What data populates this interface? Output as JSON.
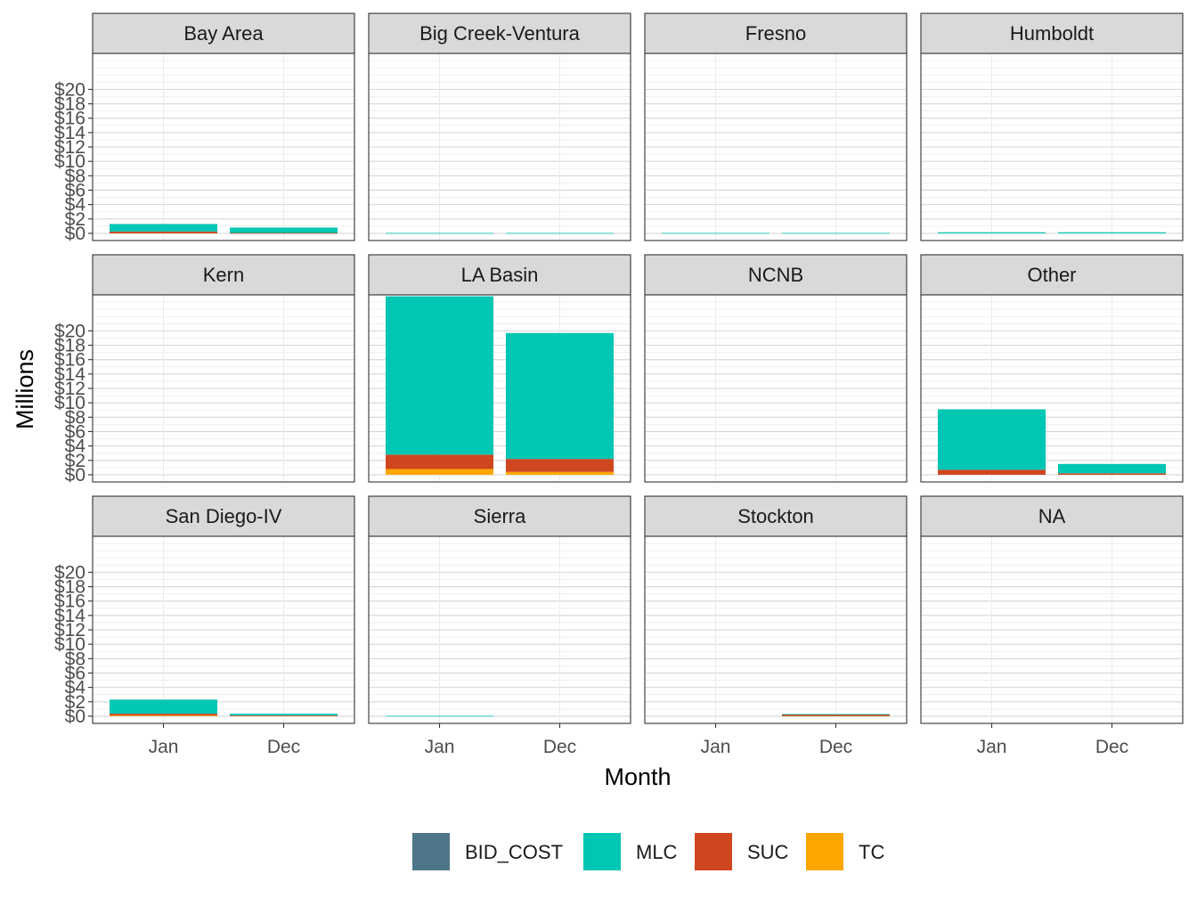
{
  "chart_data": {
    "type": "bar",
    "stacked": true,
    "facet_layout": {
      "rows": 3,
      "cols": 4,
      "scales": "fixed"
    },
    "xlabel": "Month",
    "ylabel": "Millions",
    "categories": [
      "Jan",
      "Dec"
    ],
    "y_ticks": [
      0,
      2,
      4,
      6,
      8,
      10,
      12,
      14,
      16,
      18,
      20
    ],
    "y_tick_labels": [
      "$0",
      "$2",
      "$4",
      "$6",
      "$8",
      "$10",
      "$12",
      "$14",
      "$16",
      "$18",
      "$20"
    ],
    "ylim": [
      -1,
      25
    ],
    "grid": true,
    "legend_position": "bottom",
    "legend": [
      {
        "name": "BID_COST",
        "color": "#4E7689"
      },
      {
        "name": "MLC",
        "color": "#00C6B4"
      },
      {
        "name": "SUC",
        "color": "#D0461E"
      },
      {
        "name": "TC",
        "color": "#FFA500"
      }
    ],
    "stack_order": [
      "TC",
      "SUC",
      "MLC",
      "BID_COST"
    ],
    "panels": [
      {
        "title": "Bay Area",
        "values": {
          "Jan": {
            "TC": 0,
            "SUC": 0.25,
            "MLC": 1.05,
            "BID_COST": 0
          },
          "Dec": {
            "TC": 0,
            "SUC": 0.05,
            "MLC": 0.75,
            "BID_COST": 0
          }
        }
      },
      {
        "title": "Big Creek-Ventura",
        "values": {
          "Jan": {
            "TC": 0,
            "SUC": 0,
            "MLC": 0.05,
            "BID_COST": 0
          },
          "Dec": {
            "TC": 0,
            "SUC": 0,
            "MLC": 0.05,
            "BID_COST": 0
          }
        }
      },
      {
        "title": "Fresno",
        "values": {
          "Jan": {
            "TC": 0,
            "SUC": 0,
            "MLC": 0.05,
            "BID_COST": 0
          },
          "Dec": {
            "TC": 0,
            "SUC": 0,
            "MLC": 0.05,
            "BID_COST": 0
          }
        }
      },
      {
        "title": "Humboldt",
        "values": {
          "Jan": {
            "TC": 0,
            "SUC": 0,
            "MLC": 0.15,
            "BID_COST": 0
          },
          "Dec": {
            "TC": 0,
            "SUC": 0,
            "MLC": 0.15,
            "BID_COST": 0
          }
        }
      },
      {
        "title": "Kern",
        "values": {
          "Jan": {
            "TC": 0,
            "SUC": 0,
            "MLC": 0,
            "BID_COST": 0
          },
          "Dec": {
            "TC": 0,
            "SUC": 0,
            "MLC": 0,
            "BID_COST": 0
          }
        }
      },
      {
        "title": "LA Basin",
        "values": {
          "Jan": {
            "TC": 0.8,
            "SUC": 2.0,
            "MLC": 22.0,
            "BID_COST": 0
          },
          "Dec": {
            "TC": 0.4,
            "SUC": 1.8,
            "MLC": 17.5,
            "BID_COST": 0
          }
        }
      },
      {
        "title": "NCNB",
        "values": {
          "Jan": {
            "TC": 0,
            "SUC": 0,
            "MLC": 0,
            "BID_COST": 0
          },
          "Dec": {
            "TC": 0,
            "SUC": 0,
            "MLC": 0,
            "BID_COST": 0
          }
        }
      },
      {
        "title": "Other",
        "values": {
          "Jan": {
            "TC": 0,
            "SUC": 0.7,
            "MLC": 8.4,
            "BID_COST": 0
          },
          "Dec": {
            "TC": 0,
            "SUC": 0.2,
            "MLC": 1.3,
            "BID_COST": 0
          }
        }
      },
      {
        "title": "San Diego-IV",
        "values": {
          "Jan": {
            "TC": 0.1,
            "SUC": 0.25,
            "MLC": 1.95,
            "BID_COST": 0
          },
          "Dec": {
            "TC": 0,
            "SUC": 0.1,
            "MLC": 0.25,
            "BID_COST": 0
          }
        }
      },
      {
        "title": "Sierra",
        "values": {
          "Jan": {
            "TC": 0,
            "SUC": 0,
            "MLC": 0.05,
            "BID_COST": 0
          },
          "Dec": {
            "TC": 0,
            "SUC": 0,
            "MLC": 0,
            "BID_COST": 0
          }
        }
      },
      {
        "title": "Stockton",
        "values": {
          "Jan": {
            "TC": 0,
            "SUC": 0,
            "MLC": 0,
            "BID_COST": 0
          },
          "Dec": {
            "TC": 0,
            "SUC": 0.25,
            "MLC": 0.05,
            "BID_COST": 0
          }
        }
      },
      {
        "title": "NA",
        "values": {
          "Jan": {
            "TC": 0,
            "SUC": 0,
            "MLC": 0,
            "BID_COST": 0
          },
          "Dec": {
            "TC": 0,
            "SUC": 0,
            "MLC": 0,
            "BID_COST": 0
          }
        }
      }
    ]
  }
}
